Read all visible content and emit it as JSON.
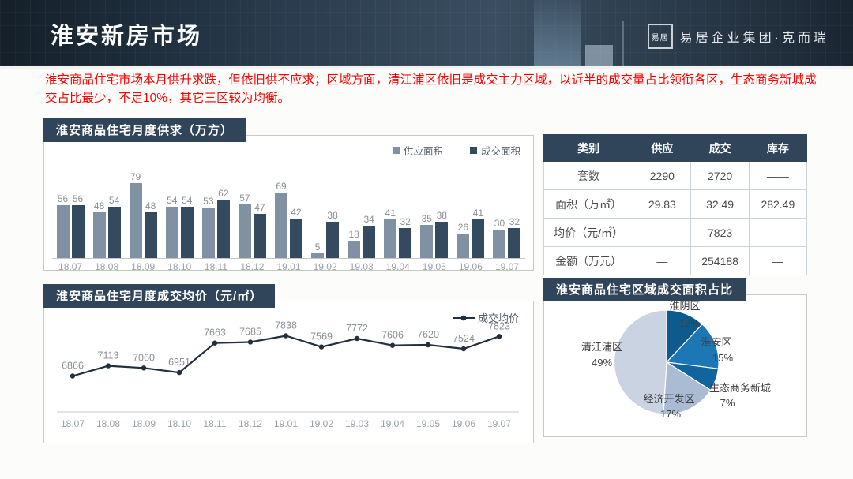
{
  "header": {
    "title": "淮安新房市场",
    "logo_seal": "易居",
    "logo_text": "易居企业集团·克而瑞"
  },
  "summary": "淮安商品住宅市场本月供升求跌，但依旧供不应求；区域方面，清江浦区依旧是成交主力区域，以近半的成交量占比领衔各区，生态商务新城成交占比最少，不足10%，其它三区较为均衡。",
  "chart_data": [
    {
      "type": "bar",
      "title": "淮安商品住宅月度供求（万方）",
      "categories": [
        "18.07",
        "18.08",
        "18.09",
        "18.10",
        "18.11",
        "18.12",
        "19.01",
        "19.02",
        "19.03",
        "19.04",
        "19.05",
        "19.06",
        "19.07"
      ],
      "series": [
        {
          "name": "供应面积",
          "color": "#7f91a3",
          "values": [
            56,
            48,
            79,
            54,
            53,
            57,
            69,
            5,
            18,
            41,
            35,
            26,
            30
          ]
        },
        {
          "name": "成交面积",
          "color": "#344a5e",
          "values": [
            56,
            54,
            48,
            54,
            62,
            47,
            42,
            38,
            34,
            32,
            38,
            41,
            32
          ]
        }
      ],
      "ylim": [
        0,
        85
      ],
      "grid": false,
      "legend_position": "top-right",
      "xlabel": "",
      "ylabel": "万方"
    },
    {
      "type": "line",
      "title": "淮安商品住宅月度成交均价（元/㎡）",
      "categories": [
        "18.07",
        "18.08",
        "18.09",
        "18.10",
        "18.11",
        "18.12",
        "19.01",
        "19.02",
        "19.03",
        "19.04",
        "19.05",
        "19.06",
        "19.07"
      ],
      "series": [
        {
          "name": "成交均价",
          "color": "#232f3e",
          "values": [
            6866,
            7113,
            7060,
            6951,
            7663,
            7685,
            7838,
            7569,
            7772,
            7606,
            7620,
            7524,
            7823
          ]
        }
      ],
      "ylim": [
        6000,
        8200
      ],
      "grid": false,
      "legend_position": "top-right",
      "xlabel": "",
      "ylabel": "元/㎡"
    },
    {
      "type": "pie",
      "title": "淮安商品住宅区域成交面积占比",
      "labels": [
        "淮阴区",
        "淮安区",
        "生态商务新城",
        "经济开发区",
        "清江浦区"
      ],
      "values": [
        12,
        15,
        7,
        17,
        49
      ],
      "value_labels": [
        "12%",
        "15%",
        "7%",
        "17%",
        "49%"
      ],
      "colors": [
        "#0d5a8e",
        "#1d77b5",
        "#10659f",
        "#a9bcd4",
        "#c9d3e2"
      ],
      "start_angle": "top",
      "direction": "clockwise"
    }
  ],
  "table": {
    "headers": [
      "类别",
      "供应",
      "成交",
      "库存"
    ],
    "rows": [
      [
        "套数",
        "2290",
        "2720",
        "——"
      ],
      [
        "面积（万㎡）",
        "29.83",
        "32.49",
        "282.49"
      ],
      [
        "均价（元/㎡）",
        "—",
        "7823",
        "—"
      ],
      [
        "金额（万元）",
        "—",
        "254188",
        "—"
      ]
    ]
  },
  "colors": {
    "accent_dark": "#31455a",
    "supply_bar": "#7f91a3",
    "deal_bar": "#344a5e",
    "line": "#232f3e",
    "summary_text": "#fe0000",
    "panel_border": "#c9c9c4"
  }
}
